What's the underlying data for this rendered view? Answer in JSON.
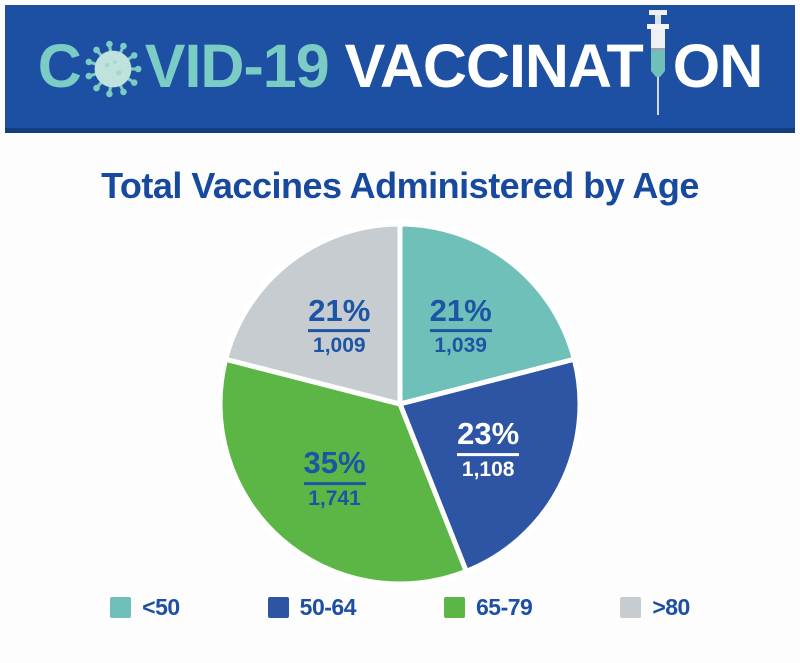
{
  "banner": {
    "word1_pre": "C",
    "word1_post": "VID-19",
    "word2_pre": "VACCINAT",
    "word2_post": "ON",
    "bg_color": "#1d4fa3",
    "teal_text_color": "#7accc5",
    "white_text_color": "#ffffff",
    "icons": [
      "coronavirus-icon",
      "syringe-icon"
    ]
  },
  "main": {
    "title": "Total Vaccines Administered by Age"
  },
  "chart_data": {
    "type": "pie",
    "title": "Total Vaccines Administered by Age",
    "start_angle_deg": 0,
    "direction": "clockwise",
    "legend_position": "bottom",
    "categories": [
      "<50",
      "50-64",
      "65-79",
      ">80"
    ],
    "values": [
      1039,
      1108,
      1741,
      1009
    ],
    "percents": [
      21,
      23,
      35,
      21
    ],
    "slices": [
      {
        "label": "<50",
        "percent": 21,
        "value": 1039,
        "percent_label": "21%",
        "value_label": "1,039",
        "color": "#6fc0b8",
        "text_color": "#1d55a5"
      },
      {
        "label": "50-64",
        "percent": 23,
        "value": 1108,
        "percent_label": "23%",
        "value_label": "1,108",
        "color": "#2e55a3",
        "text_color": "#ffffff"
      },
      {
        "label": "65-79",
        "percent": 35,
        "value": 1741,
        "percent_label": "35%",
        "value_label": "1,741",
        "color": "#5bb646",
        "text_color": "#1d55a5"
      },
      {
        "label": ">80",
        "percent": 21,
        "value": 1009,
        "percent_label": "21%",
        "value_label": "1,009",
        "color": "#c7ccd1",
        "text_color": "#1d55a5"
      }
    ],
    "slice_gap_color": "#ffffff"
  }
}
